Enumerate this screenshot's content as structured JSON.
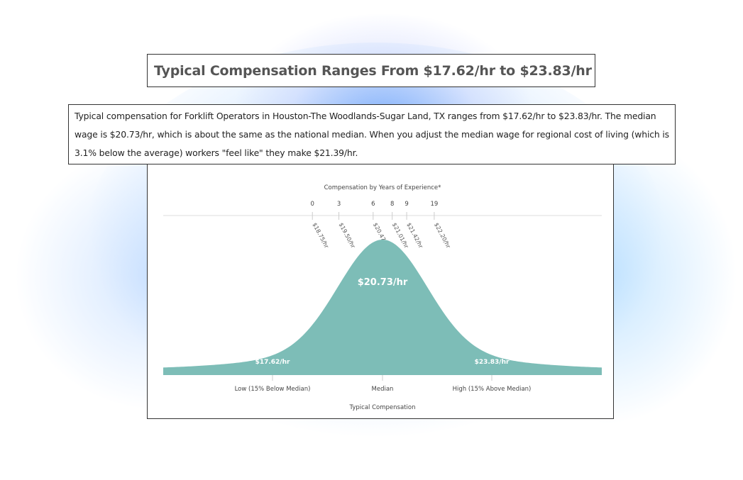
{
  "heading": "Typical Compensation Ranges From $17.62/hr to $23.83/hr",
  "description": "Typical compensation for Forklift Operators in Houston-The Woodlands-Sugar Land, TX ranges from $17.62/hr to $23.83/hr. The median wage is $20.73/hr, which is about the same as the national median. When you adjust the median wage for regional cost of living (which is 3.1% below the average) workers \"feel like\" they make $21.39/hr.",
  "chart_data": {
    "type": "area",
    "experience_title": "Compensation by Years of Experience*",
    "experience": [
      {
        "years": "0",
        "wage": "$18.75/hr"
      },
      {
        "years": "3",
        "wage": "$19.50/hr"
      },
      {
        "years": "6",
        "wage": "$20.47/hr"
      },
      {
        "years": "8",
        "wage": "$21.01/hr"
      },
      {
        "years": "9",
        "wage": "$21.42/hr"
      },
      {
        "years": "19",
        "wage": "$22.20/hr"
      }
    ],
    "experience_wage_values": [
      18.75,
      19.5,
      20.47,
      21.01,
      21.42,
      22.2
    ],
    "distribution": {
      "low": {
        "label": "Low (15% Below Median)",
        "value_label": "$17.62/hr",
        "value": 17.62
      },
      "median": {
        "label": "Median",
        "value_label": "$20.73/hr",
        "value": 20.73
      },
      "high": {
        "label": "High (15% Above Median)",
        "value_label": "$23.83/hr",
        "value": 23.83
      }
    },
    "xlabel": "Typical Compensation",
    "curve_color": "#7dbdb7"
  }
}
